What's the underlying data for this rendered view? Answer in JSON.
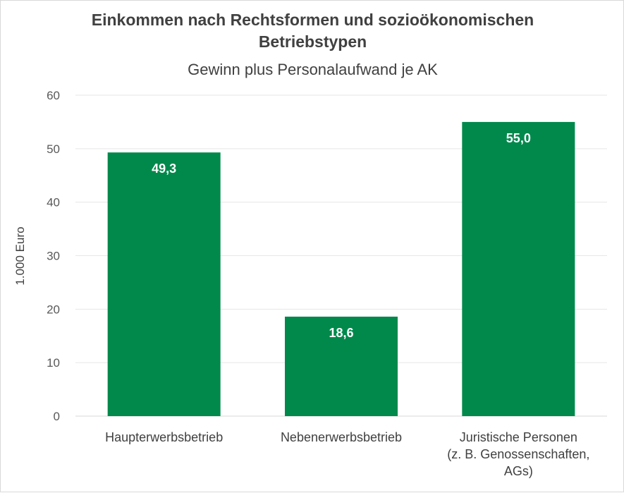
{
  "chart_data": {
    "type": "bar",
    "title_lines": [
      "Einkommen nach Rechtsformen und sozioökonomischen",
      "Betriebstypen"
    ],
    "subtitle": "Gewinn plus Personalaufwand je AK",
    "xlabel": "",
    "ylabel": "1.000 Euro",
    "ylim": [
      0,
      60
    ],
    "yticks": [
      0,
      10,
      20,
      30,
      40,
      50,
      60
    ],
    "grid": true,
    "legend": "none",
    "categories": [
      [
        "Haupterwerbsbetrieb"
      ],
      [
        "Nebenerwerbsbetrieb"
      ],
      [
        "Juristische Personen",
        "(z. B. Genossenschaften,",
        "AGs)"
      ]
    ],
    "values": [
      49.3,
      18.6,
      55.0
    ],
    "value_labels": [
      "49,3",
      "18,6",
      "55,0"
    ],
    "bar_color": "#00894b",
    "grid_color": "#e6e6e6"
  }
}
